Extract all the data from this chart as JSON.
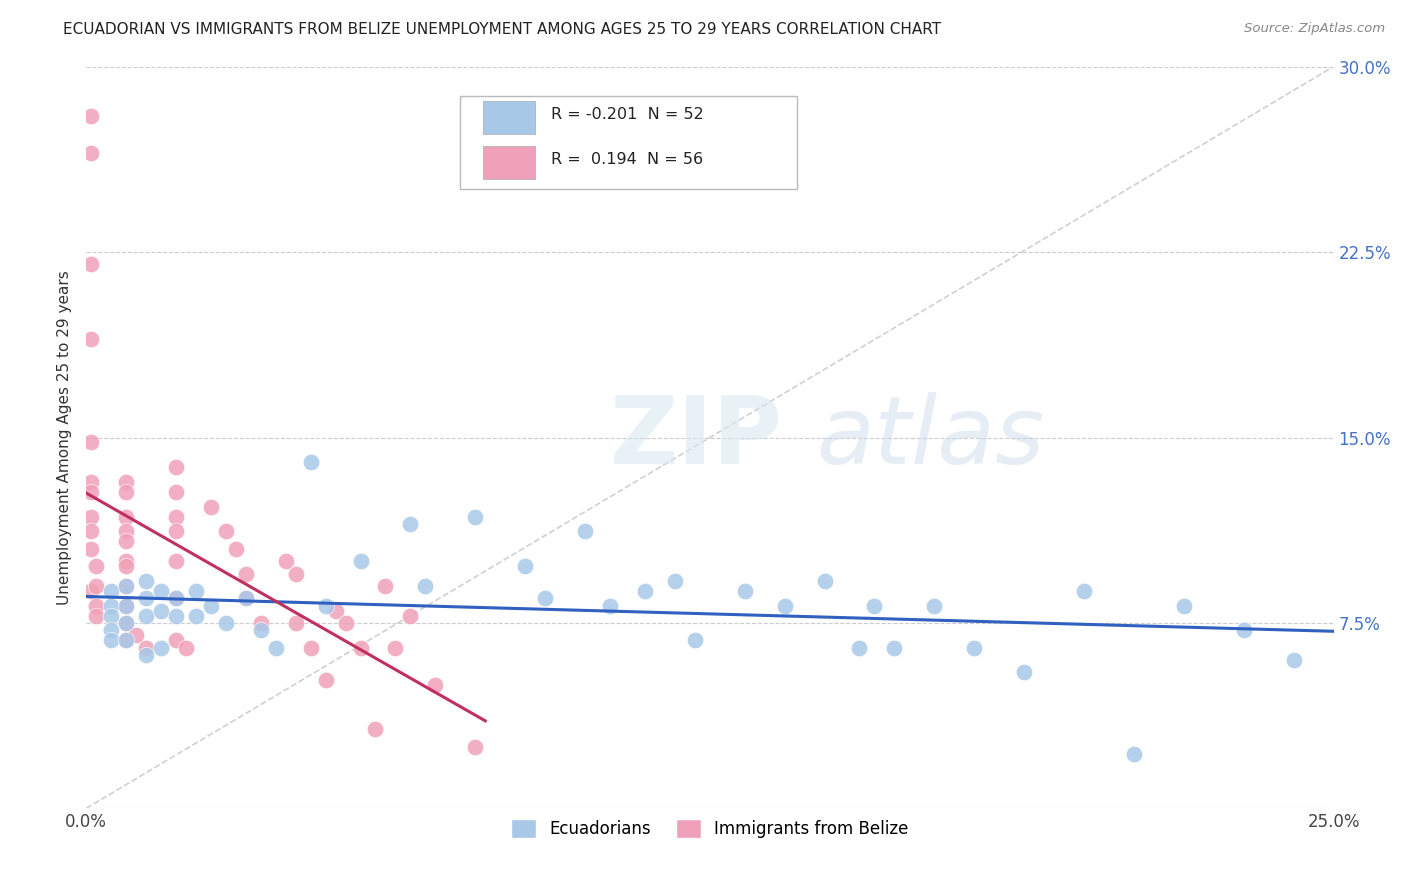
{
  "title": "ECUADORIAN VS IMMIGRANTS FROM BELIZE UNEMPLOYMENT AMONG AGES 25 TO 29 YEARS CORRELATION CHART",
  "source": "Source: ZipAtlas.com",
  "ylabel": "Unemployment Among Ages 25 to 29 years",
  "xlim": [
    0.0,
    0.25
  ],
  "ylim": [
    0.0,
    0.3
  ],
  "xtick_positions": [
    0.0,
    0.05,
    0.1,
    0.15,
    0.2,
    0.25
  ],
  "xticklabels": [
    "0.0%",
    "",
    "",
    "",
    "",
    "25.0%"
  ],
  "ytick_positions": [
    0.0,
    0.075,
    0.15,
    0.225,
    0.3
  ],
  "yticklabels": [
    "",
    "7.5%",
    "15.0%",
    "22.5%",
    "30.0%"
  ],
  "blue_R": "-0.201",
  "blue_N": "52",
  "pink_R": "0.194",
  "pink_N": "56",
  "blue_color": "#a8c8e8",
  "pink_color": "#f0a0b8",
  "blue_line_color": "#3060c0",
  "pink_line_color": "#c03060",
  "diag_line_color": "#d0d0d0",
  "legend_label_blue": "Ecuadorians",
  "legend_label_pink": "Immigrants from Belize",
  "blue_x": [
    0.005,
    0.005,
    0.005,
    0.005,
    0.005,
    0.008,
    0.008,
    0.008,
    0.008,
    0.012,
    0.012,
    0.012,
    0.012,
    0.015,
    0.015,
    0.015,
    0.018,
    0.018,
    0.022,
    0.022,
    0.025,
    0.028,
    0.032,
    0.035,
    0.038,
    0.045,
    0.048,
    0.055,
    0.065,
    0.068,
    0.078,
    0.088,
    0.092,
    0.1,
    0.105,
    0.112,
    0.118,
    0.122,
    0.132,
    0.14,
    0.148,
    0.155,
    0.158,
    0.162,
    0.17,
    0.178,
    0.188,
    0.2,
    0.21,
    0.22,
    0.232,
    0.242
  ],
  "blue_y": [
    0.088,
    0.082,
    0.078,
    0.072,
    0.068,
    0.09,
    0.082,
    0.075,
    0.068,
    0.092,
    0.085,
    0.078,
    0.062,
    0.088,
    0.08,
    0.065,
    0.085,
    0.078,
    0.088,
    0.078,
    0.082,
    0.075,
    0.085,
    0.072,
    0.065,
    0.14,
    0.082,
    0.1,
    0.115,
    0.09,
    0.118,
    0.098,
    0.085,
    0.112,
    0.082,
    0.088,
    0.092,
    0.068,
    0.088,
    0.082,
    0.092,
    0.065,
    0.082,
    0.065,
    0.082,
    0.065,
    0.055,
    0.088,
    0.022,
    0.082,
    0.072,
    0.06
  ],
  "pink_x": [
    0.001,
    0.001,
    0.001,
    0.001,
    0.001,
    0.001,
    0.001,
    0.001,
    0.001,
    0.001,
    0.001,
    0.002,
    0.002,
    0.002,
    0.002,
    0.008,
    0.008,
    0.008,
    0.008,
    0.008,
    0.008,
    0.008,
    0.008,
    0.008,
    0.008,
    0.008,
    0.01,
    0.012,
    0.018,
    0.018,
    0.018,
    0.018,
    0.018,
    0.018,
    0.018,
    0.02,
    0.025,
    0.028,
    0.03,
    0.032,
    0.032,
    0.035,
    0.04,
    0.042,
    0.042,
    0.045,
    0.048,
    0.05,
    0.052,
    0.055,
    0.058,
    0.06,
    0.062,
    0.065,
    0.07,
    0.078
  ],
  "pink_y": [
    0.28,
    0.265,
    0.22,
    0.19,
    0.148,
    0.132,
    0.128,
    0.118,
    0.112,
    0.105,
    0.088,
    0.098,
    0.09,
    0.082,
    0.078,
    0.132,
    0.128,
    0.118,
    0.112,
    0.108,
    0.1,
    0.098,
    0.09,
    0.082,
    0.075,
    0.068,
    0.07,
    0.065,
    0.138,
    0.128,
    0.118,
    0.112,
    0.1,
    0.085,
    0.068,
    0.065,
    0.122,
    0.112,
    0.105,
    0.095,
    0.085,
    0.075,
    0.1,
    0.095,
    0.075,
    0.065,
    0.052,
    0.08,
    0.075,
    0.065,
    0.032,
    0.09,
    0.065,
    0.078,
    0.05,
    0.025
  ]
}
